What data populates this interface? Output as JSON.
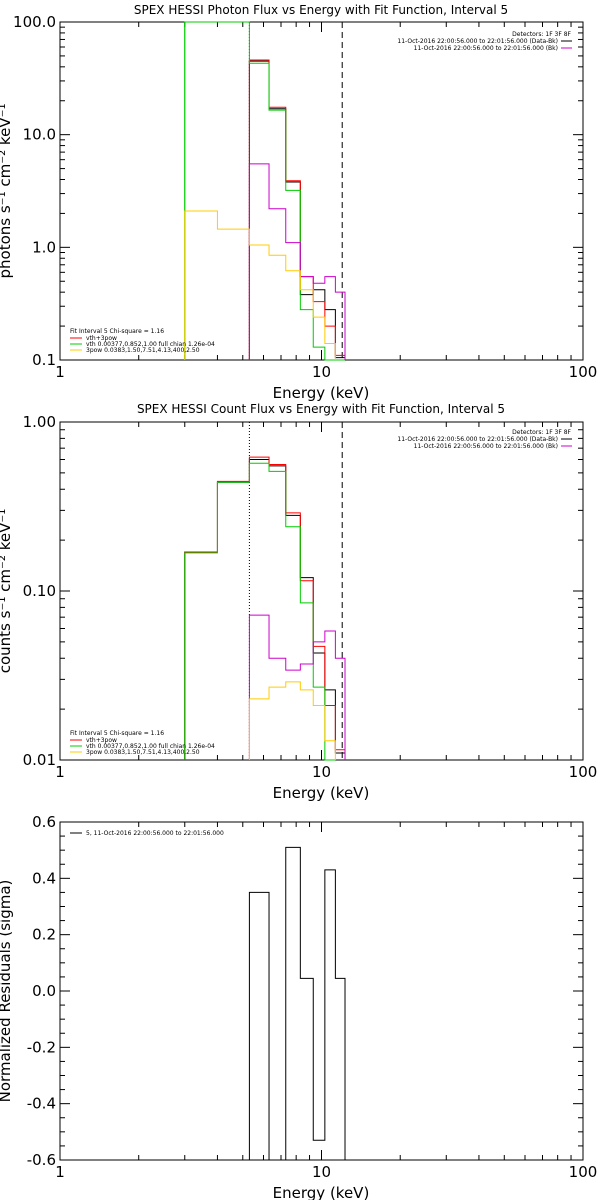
{
  "chart_data": [
    {
      "type": "line",
      "title": "SPEX HESSI Photon Flux vs Energy with Fit Function, Interval 5",
      "xlabel": "Energy (keV)",
      "ylabel": "photons s⁻¹ cm⁻² keV⁻¹",
      "xscale": "log",
      "yscale": "log",
      "xlim": [
        1,
        100
      ],
      "ylim": [
        0.1,
        100
      ],
      "x_ticks": [
        "1",
        "10",
        "100"
      ],
      "y_ticks": [
        "0.1",
        "1.0",
        "10.0",
        "100.0"
      ],
      "grid": false,
      "legend_top_right": {
        "position": "top-right",
        "entries": [
          {
            "text": "Detectors: 1F 3F 8F",
            "color": ""
          },
          {
            "text": "11-Oct-2016 22:00:56.000 to 22:01:56.000 (Data-Bk)",
            "color": "#000000"
          },
          {
            "text": "11-Oct-2016 22:00:56.000 to 22:01:56.000 (Bk)",
            "color": "#cc00cc"
          }
        ]
      },
      "legend_bottom_left": {
        "position": "bottom-left",
        "entries": [
          {
            "text": "Fit Interval 5   Chi-square = 1.16",
            "color": ""
          },
          {
            "text": "vth+3pow",
            "color": "#ff0000"
          },
          {
            "text": "vth 0.00377,0.852,1.00  full chian 1.26e-04",
            "color": "#00cc00"
          },
          {
            "text": "3pow 0.0383,1.50,7.51,4.13,400,2.50",
            "color": "#ffcc00"
          }
        ]
      },
      "vlines": [
        {
          "x": 3.0,
          "style": "solid",
          "color": "#00cc00"
        },
        {
          "x": 5.3,
          "style": "dotted",
          "color": "#000000"
        },
        {
          "x": 12.0,
          "style": "dashed",
          "color": "#000000"
        }
      ],
      "series": [
        {
          "name": "11-Oct-2016 22:00:56.000 to 22:01:56.000 (Data-Bk)",
          "color": "#000000",
          "edges": [
            5.3,
            6.3,
            7.3,
            8.3,
            9.3,
            10.3,
            11.3,
            12.3
          ],
          "values": [
            45,
            17,
            3.8,
            0.38,
            0.42,
            0.28,
            0.105
          ]
        },
        {
          "name": "vth+3pow",
          "color": "#ff0000",
          "edges": [
            5.3,
            6.3,
            7.3,
            8.3,
            9.3,
            10.3,
            11.3,
            12.3
          ],
          "values": [
            46,
            17.5,
            3.9,
            0.55,
            0.33,
            0.2,
            0.11
          ]
        },
        {
          "name": "vth",
          "color": "#00cc00",
          "edges": [
            3.0,
            4.0,
            5.3,
            6.3,
            7.3,
            8.3,
            9.3,
            10.3,
            11.3,
            12.3
          ],
          "values": [
            100,
            100,
            43,
            16.5,
            3.2,
            0.28,
            0.13,
            0.1,
            0.1
          ]
        },
        {
          "name": "11-Oct-2016 22:00:56.000 to 22:01:56.000 (Bk)",
          "color": "#cc00cc",
          "edges": [
            5.3,
            6.3,
            7.3,
            8.3,
            9.3,
            10.3,
            11.3,
            12.3
          ],
          "values": [
            5.5,
            2.2,
            1.1,
            0.55,
            0.48,
            0.55,
            0.4
          ]
        },
        {
          "name": "3pow",
          "color": "#ffcc00",
          "edges": [
            3.0,
            4.0,
            5.3,
            6.3,
            7.3,
            8.3,
            9.3,
            10.3,
            11.3
          ],
          "values": [
            2.1,
            1.45,
            1.05,
            0.85,
            0.62,
            0.42,
            0.24,
            0.14
          ]
        }
      ]
    },
    {
      "type": "line",
      "title": "SPEX HESSI Count Flux vs Energy with Fit Function, Interval 5",
      "xlabel": "Energy (keV)",
      "ylabel": "counts s⁻¹ cm⁻² keV⁻¹",
      "xscale": "log",
      "yscale": "log",
      "xlim": [
        1,
        100
      ],
      "ylim": [
        0.01,
        1
      ],
      "x_ticks": [
        "1",
        "10",
        "100"
      ],
      "y_ticks": [
        "0.01",
        "0.10",
        "1.00"
      ],
      "grid": false,
      "legend_top_right": {
        "position": "top-right",
        "entries": [
          {
            "text": "Detectors: 1F 3F 8F",
            "color": ""
          },
          {
            "text": "11-Oct-2016 22:00:56.000 to 22:01:56.000 (Data-Bk)",
            "color": "#000000"
          },
          {
            "text": "11-Oct-2016 22:00:56.000 to 22:01:56.000 (Bk)",
            "color": "#cc00cc"
          }
        ]
      },
      "legend_bottom_left": {
        "position": "bottom-left",
        "entries": [
          {
            "text": "Fit Interval 5   Chi-square = 1.16",
            "color": ""
          },
          {
            "text": "vth+3pow",
            "color": "#ff0000"
          },
          {
            "text": "vth 0.00377,0.852,1.00  full chian 1.26e-04",
            "color": "#00cc00"
          },
          {
            "text": "3pow 0.0383,1.50,7.51,4.13,400,2.50",
            "color": "#ffcc00"
          }
        ]
      },
      "vlines": [
        {
          "x": 5.3,
          "style": "dotted",
          "color": "#000000"
        },
        {
          "x": 12.0,
          "style": "dashed",
          "color": "#000000"
        }
      ],
      "series": [
        {
          "name": "11-Oct-2016 22:00:56.000 to 22:01:56.000 (Data-Bk)",
          "color": "#000000",
          "edges": [
            3.0,
            4.0,
            5.3,
            6.3,
            7.3,
            8.3,
            9.3,
            10.3,
            11.3,
            12.3
          ],
          "values": [
            0.17,
            0.44,
            0.6,
            0.55,
            0.28,
            0.12,
            0.043,
            0.026,
            0.011
          ]
        },
        {
          "name": "vth+3pow",
          "color": "#ff0000",
          "edges": [
            3.0,
            4.0,
            5.3,
            6.3,
            7.3,
            8.3,
            9.3,
            10.3,
            11.3,
            12.3
          ],
          "values": [
            0.17,
            0.445,
            0.62,
            0.56,
            0.29,
            0.115,
            0.047,
            0.021,
            0.0115
          ]
        },
        {
          "name": "vth",
          "color": "#00cc00",
          "edges": [
            3.0,
            4.0,
            5.3,
            6.3,
            7.3,
            8.3,
            9.3,
            10.3,
            11.3
          ],
          "values": [
            0.168,
            0.44,
            0.57,
            0.51,
            0.24,
            0.085,
            0.027,
            0.01
          ]
        },
        {
          "name": "11-Oct-2016 22:00:56.000 to 22:01:56.000 (Bk)",
          "color": "#cc00cc",
          "edges": [
            5.3,
            6.3,
            7.3,
            8.3,
            9.3,
            10.3,
            11.3,
            12.3
          ],
          "values": [
            0.072,
            0.04,
            0.034,
            0.037,
            0.05,
            0.058,
            0.04
          ]
        },
        {
          "name": "3pow",
          "color": "#ffcc00",
          "edges": [
            5.3,
            6.3,
            7.3,
            8.3,
            9.3,
            10.3,
            11.3
          ],
          "values": [
            0.023,
            0.027,
            0.029,
            0.026,
            0.021,
            0.013
          ]
        }
      ]
    },
    {
      "type": "line",
      "title": "",
      "xlabel": "Energy (keV)",
      "ylabel": "Normalized Residuals (sigma)",
      "xscale": "log",
      "yscale": "linear",
      "xlim": [
        1,
        100
      ],
      "ylim": [
        -0.6,
        0.6
      ],
      "x_ticks": [
        "1",
        "10",
        "100"
      ],
      "y_ticks": [
        "-0.6",
        "-0.4",
        "-0.2",
        "0.0",
        "0.2",
        "0.4",
        "0.6"
      ],
      "grid": false,
      "legend_top_left": {
        "position": "top-left",
        "entries": [
          {
            "text": "5, 11-Oct-2016 22:00:56.000 to 22:01:56.000",
            "color": "#000000"
          }
        ]
      },
      "series": [
        {
          "name": "5, 11-Oct-2016 22:00:56.000 to 22:01:56.000",
          "color": "#000000",
          "edges": [
            5.3,
            6.3,
            7.3,
            8.3,
            9.3,
            10.3,
            11.3,
            12.3
          ],
          "values": [
            0.35,
            -0.6,
            0.51,
            0.045,
            -0.53,
            0.43,
            0.045
          ]
        }
      ]
    }
  ]
}
